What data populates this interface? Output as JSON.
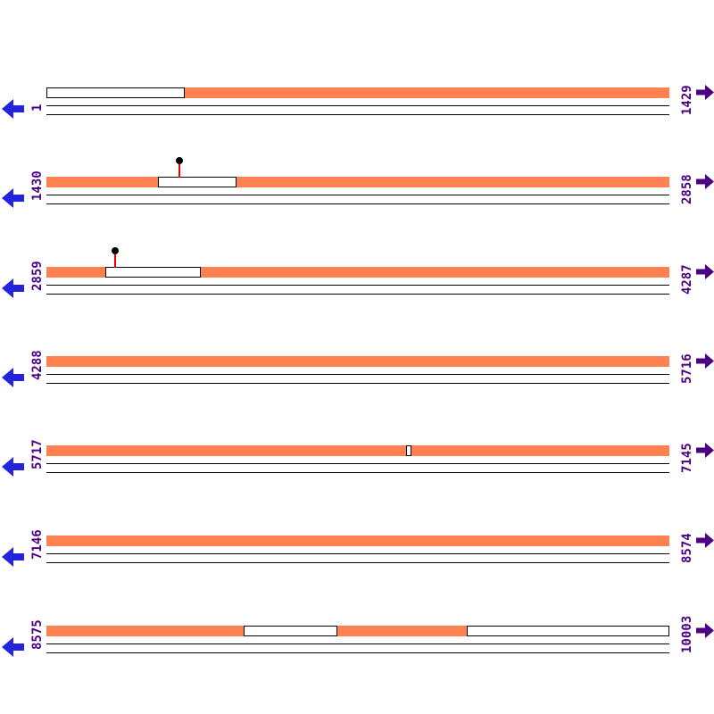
{
  "figure": {
    "description": "Linear sequence map drawn in 7 tiers; orange segments mark covered regions on each tier; lollipop pins mark point features.",
    "tier_span": "1429",
    "first_position": "1",
    "last_position": "10003"
  },
  "colors": {
    "feature_fill": "#FF8050",
    "left_arrow": "#2424DC",
    "right_arrow": "#4B0082",
    "coordinate_text": "#4B0082",
    "marker_stem": "#E80000",
    "marker_dot": "#000000",
    "outline": "#000000",
    "background": "#FFFFFF"
  },
  "icons": {
    "left_arrow": "left-arrow-icon",
    "right_arrow": "right-arrow-icon",
    "marker": "lollipop-marker-icon"
  },
  "rows": [
    {
      "start_label": "1",
      "end_label": "1429",
      "orange_segments": [
        {
          "start": 0.222,
          "end": 1.0
        }
      ],
      "markers": []
    },
    {
      "start_label": "1430",
      "end_label": "2858",
      "orange_segments": [
        {
          "start": 0.0,
          "end": 0.179
        },
        {
          "start": 0.305,
          "end": 1.0
        }
      ],
      "markers": [
        {
          "pos": 0.2135
        }
      ]
    },
    {
      "start_label": "2859",
      "end_label": "4287",
      "orange_segments": [
        {
          "start": 0.0,
          "end": 0.0946
        },
        {
          "start": 0.2478,
          "end": 1.0
        }
      ],
      "markers": [
        {
          "pos": 0.1103
        }
      ]
    },
    {
      "start_label": "4288",
      "end_label": "5716",
      "orange_segments": [
        {
          "start": 0.0,
          "end": 1.0
        }
      ],
      "markers": []
    },
    {
      "start_label": "5717",
      "end_label": "7145",
      "orange_segments": [
        {
          "start": 0.0,
          "end": 0.5774
        },
        {
          "start": 0.586,
          "end": 1.0
        }
      ],
      "markers": []
    },
    {
      "start_label": "7146",
      "end_label": "8574",
      "orange_segments": [
        {
          "start": 0.0,
          "end": 1.0
        }
      ],
      "markers": []
    },
    {
      "start_label": "8575",
      "end_label": "10003",
      "orange_segments": [
        {
          "start": 0.0,
          "end": 0.3166
        },
        {
          "start": 0.467,
          "end": 0.6748
        }
      ],
      "markers": []
    }
  ]
}
